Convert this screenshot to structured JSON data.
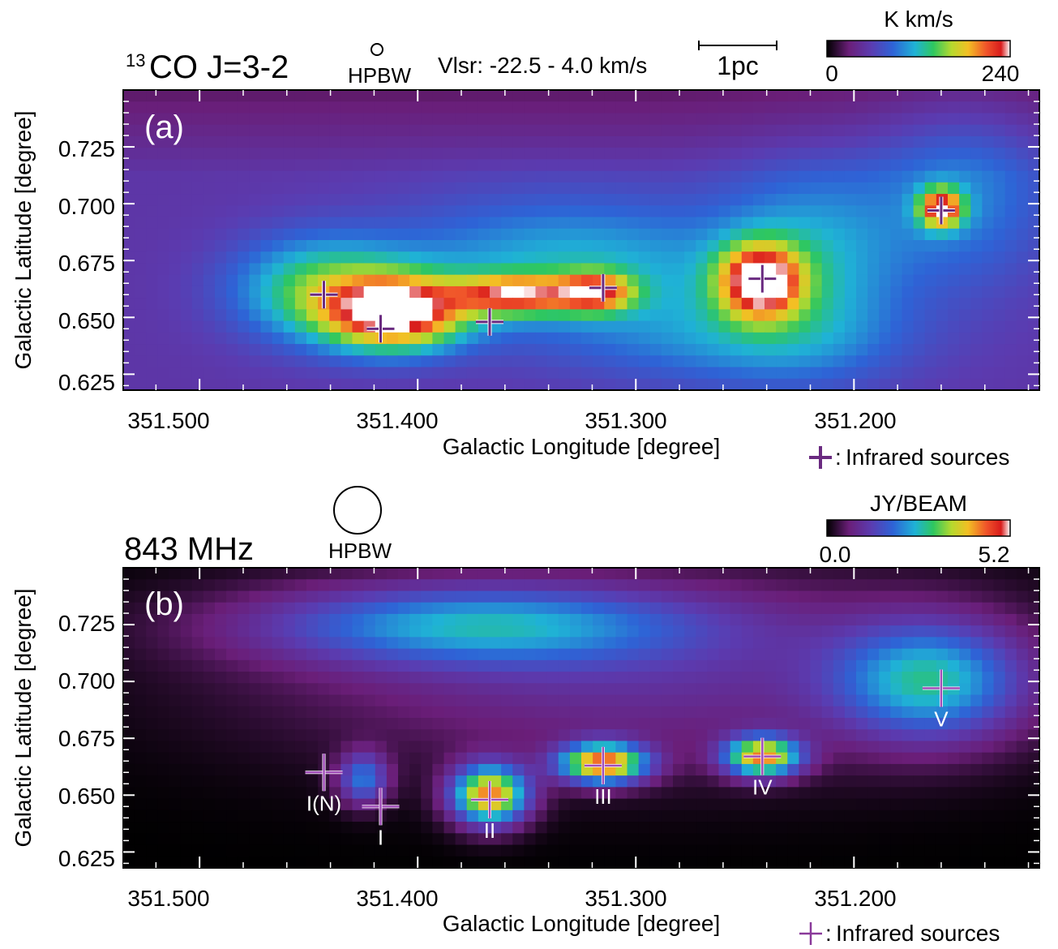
{
  "chart_data": [
    {
      "type": "heatmap",
      "panel_label": "(a)",
      "title_sup": "13",
      "title": "CO J=3-2",
      "beam_label": "HPBW",
      "velocity_label": "Vlsr: -22.5 - 4.0 km/s",
      "scale_label": "1pc",
      "colorbar": {
        "unit": "K km/s",
        "min": 0,
        "max": 240,
        "min_label": "0",
        "max_label": "240"
      },
      "xlabel": "Galactic Longitude [degree]",
      "ylabel": "Galactic Latitude [degree]",
      "xlim": [
        351.535,
        351.115
      ],
      "ylim": [
        0.618,
        0.75
      ],
      "xticks": [
        351.5,
        351.4,
        351.3,
        351.2
      ],
      "xtick_labels": [
        "351.500",
        "351.400",
        "351.300",
        "351.200"
      ],
      "yticks": [
        0.625,
        0.65,
        0.675,
        0.7,
        0.725
      ],
      "ytick_labels": [
        "0.625",
        "0.650",
        "0.675",
        "0.700",
        "0.725"
      ],
      "legend": "Infrared sources",
      "sources": [
        {
          "l": 351.443,
          "b": 0.66
        },
        {
          "l": 351.417,
          "b": 0.645
        },
        {
          "l": 351.367,
          "b": 0.648
        },
        {
          "l": 351.315,
          "b": 0.663
        },
        {
          "l": 351.242,
          "b": 0.667
        },
        {
          "l": 351.16,
          "b": 0.697
        }
      ],
      "emission": [
        {
          "l": 351.41,
          "b": 0.652,
          "sl": 0.022,
          "sb": 0.011,
          "amp": 180
        },
        {
          "l": 351.355,
          "b": 0.66,
          "sl": 0.02,
          "sb": 0.006,
          "amp": 130
        },
        {
          "l": 351.318,
          "b": 0.661,
          "sl": 0.012,
          "sb": 0.006,
          "amp": 115
        },
        {
          "l": 351.243,
          "b": 0.666,
          "sl": 0.013,
          "sb": 0.011,
          "amp": 165
        },
        {
          "l": 351.16,
          "b": 0.698,
          "sl": 0.007,
          "sb": 0.006,
          "amp": 150
        },
        {
          "l": 351.445,
          "b": 0.662,
          "sl": 0.028,
          "sb": 0.016,
          "amp": 85
        },
        {
          "l": 351.33,
          "b": 0.672,
          "sl": 0.06,
          "sb": 0.022,
          "amp": 65
        },
        {
          "l": 351.22,
          "b": 0.675,
          "sl": 0.03,
          "sb": 0.03,
          "amp": 55
        },
        {
          "l": 351.15,
          "b": 0.705,
          "sl": 0.03,
          "sb": 0.03,
          "amp": 45
        },
        {
          "l": 351.25,
          "b": 0.64,
          "sl": 0.05,
          "sb": 0.015,
          "amp": 40
        }
      ]
    },
    {
      "type": "heatmap",
      "panel_label": "(b)",
      "title": "843 MHz",
      "beam_label": "HPBW",
      "colorbar": {
        "unit": "JY/BEAM",
        "min": 0.0,
        "max": 5.2,
        "min_label": "0.0",
        "max_label": "5.2"
      },
      "xlabel": "Galactic Longitude [degree]",
      "ylabel": "Galactic Latitude [degree]",
      "xlim": [
        351.535,
        351.115
      ],
      "ylim": [
        0.618,
        0.75
      ],
      "xticks": [
        351.5,
        351.4,
        351.3,
        351.2
      ],
      "xtick_labels": [
        "351.500",
        "351.400",
        "351.300",
        "351.200"
      ],
      "yticks": [
        0.625,
        0.65,
        0.675,
        0.7,
        0.725
      ],
      "ytick_labels": [
        "0.625",
        "0.650",
        "0.675",
        "0.700",
        "0.725"
      ],
      "legend": "Infrared sources",
      "sources": [
        {
          "l": 351.443,
          "b": 0.66,
          "label": "I(N)"
        },
        {
          "l": 351.417,
          "b": 0.645,
          "label": "I"
        },
        {
          "l": 351.367,
          "b": 0.648,
          "label": "II"
        },
        {
          "l": 351.315,
          "b": 0.663,
          "label": "III"
        },
        {
          "l": 351.242,
          "b": 0.667,
          "label": "IV"
        },
        {
          "l": 351.16,
          "b": 0.697,
          "label": "V"
        }
      ],
      "emission": [
        {
          "l": 351.367,
          "b": 0.65,
          "sl": 0.012,
          "sb": 0.009,
          "amp": 4.2
        },
        {
          "l": 351.315,
          "b": 0.664,
          "sl": 0.014,
          "sb": 0.006,
          "amp": 4.3
        },
        {
          "l": 351.242,
          "b": 0.667,
          "sl": 0.012,
          "sb": 0.006,
          "amp": 4.0
        },
        {
          "l": 351.165,
          "b": 0.7,
          "sl": 0.03,
          "sb": 0.018,
          "amp": 2.3
        },
        {
          "l": 351.375,
          "b": 0.725,
          "sl": 0.07,
          "sb": 0.012,
          "amp": 2.0
        },
        {
          "l": 351.425,
          "b": 0.657,
          "sl": 0.008,
          "sb": 0.008,
          "amp": 1.9
        },
        {
          "l": 351.3,
          "b": 0.705,
          "sl": 0.12,
          "sb": 0.03,
          "amp": 1.0
        }
      ]
    }
  ]
}
